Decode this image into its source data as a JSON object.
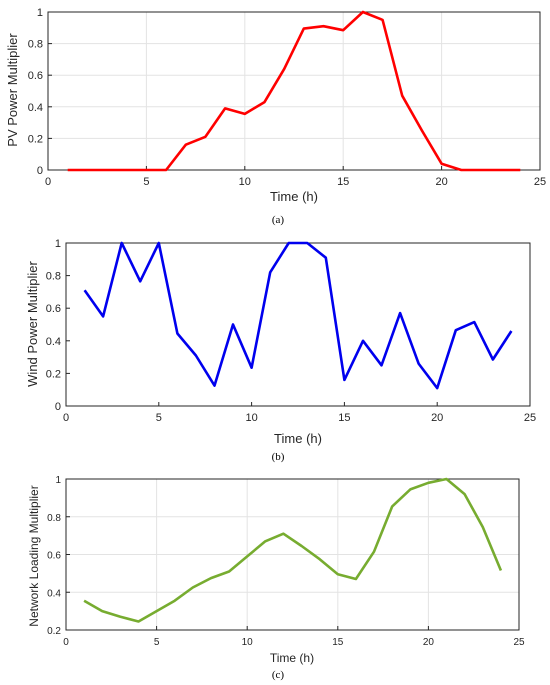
{
  "colors": {
    "pv_line": "#ff0000",
    "wind_line": "#0000ee",
    "load_line": "#77ac30",
    "grid": "#e3e3e3",
    "axis": "#262626"
  },
  "chart_data": [
    {
      "type": "line",
      "id": "pv",
      "caption": "(a)",
      "xlabel": "Time (h)",
      "ylabel": "PV Power Multiplier",
      "xlim": [
        0,
        25
      ],
      "ylim": [
        0,
        1
      ],
      "xticks": [
        0,
        5,
        10,
        15,
        20,
        25
      ],
      "yticks": [
        0,
        0.2,
        0.4,
        0.6,
        0.8,
        1
      ],
      "ytick_labels": [
        "0",
        "0.2",
        "0.4",
        "0.6",
        "0.8",
        "1"
      ],
      "grid": true,
      "x": [
        1,
        2,
        3,
        4,
        5,
        6,
        7,
        8,
        9,
        10,
        11,
        12,
        13,
        14,
        15,
        16,
        17,
        18,
        19,
        20,
        21,
        22,
        23,
        24
      ],
      "series": [
        {
          "values": [
            0,
            0,
            0,
            0,
            0,
            0,
            0.16,
            0.21,
            0.39,
            0.355,
            0.43,
            0.64,
            0.895,
            0.91,
            0.885,
            1.0,
            0.95,
            0.47,
            0.25,
            0.04,
            0,
            0,
            0,
            0
          ]
        }
      ]
    },
    {
      "type": "line",
      "id": "wind",
      "caption": "(b)",
      "xlabel": "Time (h)",
      "ylabel": "Wind Power Multiplier",
      "xlim": [
        0,
        25
      ],
      "ylim": [
        0,
        1
      ],
      "xticks": [
        0,
        5,
        10,
        15,
        20,
        25
      ],
      "yticks": [
        0,
        0.2,
        0.4,
        0.6,
        0.8,
        1
      ],
      "ytick_labels": [
        "0",
        "0.2",
        "0.4",
        "0.6",
        "0.8",
        "1"
      ],
      "grid": false,
      "x": [
        1,
        2,
        3,
        4,
        5,
        6,
        7,
        8,
        9,
        10,
        11,
        12,
        13,
        14,
        15,
        16,
        17,
        18,
        19,
        20,
        21,
        22,
        23,
        24
      ],
      "series": [
        {
          "values": [
            0.71,
            0.55,
            1.0,
            0.765,
            1.0,
            0.445,
            0.31,
            0.125,
            0.5,
            0.235,
            0.82,
            1.0,
            1.0,
            0.91,
            0.16,
            0.4,
            0.25,
            0.57,
            0.26,
            0.11,
            0.465,
            0.515,
            0.285,
            0.46
          ]
        }
      ]
    },
    {
      "type": "line",
      "id": "load",
      "caption": "(c)",
      "xlabel": "Time (h)",
      "ylabel": "Network Loading Multiplier",
      "xlim": [
        0,
        25
      ],
      "ylim": [
        0.2,
        1
      ],
      "xticks": [
        0,
        5,
        10,
        15,
        20,
        25
      ],
      "yticks": [
        0.2,
        0.4,
        0.6,
        0.8,
        1
      ],
      "ytick_labels": [
        "0.2",
        "0.4",
        "0.6",
        "0.8",
        "1"
      ],
      "grid": true,
      "x": [
        1,
        2,
        3,
        4,
        5,
        6,
        7,
        8,
        9,
        10,
        11,
        12,
        13,
        14,
        15,
        16,
        17,
        18,
        19,
        20,
        21,
        22,
        23,
        24
      ],
      "series": [
        {
          "values": [
            0.355,
            0.3,
            0.27,
            0.245,
            0.3,
            0.355,
            0.425,
            0.475,
            0.51,
            0.59,
            0.67,
            0.71,
            0.645,
            0.575,
            0.495,
            0.47,
            0.615,
            0.855,
            0.945,
            0.98,
            1.0,
            0.92,
            0.745,
            0.515
          ]
        }
      ]
    }
  ]
}
